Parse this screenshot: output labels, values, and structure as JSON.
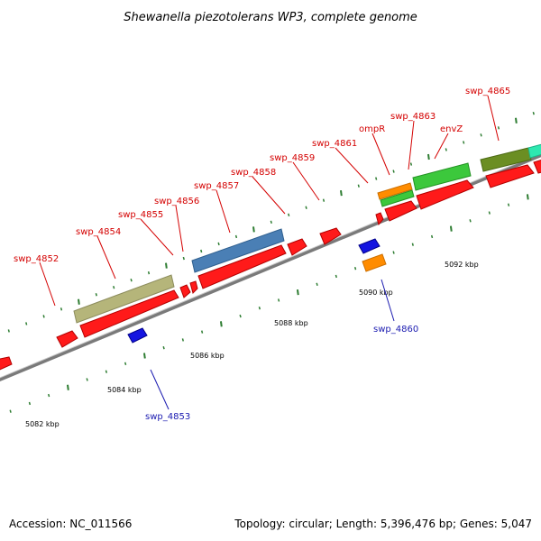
{
  "title": "Shewanella piezotolerans WP3, complete genome",
  "footer": {
    "accession": "Accession: NC_011566",
    "summary": "Topology: circular; Length: 5,396,476 bp; Genes: 5,047"
  },
  "colors": {
    "forward_label": "#d40000",
    "reverse_label": "#1a1ab0",
    "backbone": "#8a8a8a",
    "tick": "#2e7d32",
    "cds_forward": "#ff1a1a",
    "cds_reverse": "#1414e0"
  },
  "scale_labels": [
    "5082 kbp",
    "5084 kbp",
    "5086 kbp",
    "5088 kbp",
    "5090 kbp",
    "5092 kbp"
  ],
  "genes_forward": [
    {
      "id": "f-4852",
      "label": "swp_4852",
      "cog_color": "#ff1a1a"
    },
    {
      "id": "f-4854",
      "label": "swp_4854",
      "cog_color": "#b5b57a"
    },
    {
      "id": "f-4855",
      "label": "swp_4855",
      "cog_color": "#ff1a1a"
    },
    {
      "id": "f-4856",
      "label": "swp_4856",
      "cog_color": "#ff1a1a"
    },
    {
      "id": "f-4857",
      "label": "swp_4857",
      "cog_color": "#4a7fb5"
    },
    {
      "id": "f-4858",
      "label": "swp_4858",
      "cog_color": "#ff1a1a"
    },
    {
      "id": "f-4859",
      "label": "swp_4859",
      "cog_color": "#ff1a1a"
    },
    {
      "id": "f-4861",
      "label": "swp_4861",
      "cog_color": "#ff1a1a"
    },
    {
      "id": "f-ompR",
      "label": "ompR",
      "cog_color": "#ff8c00"
    },
    {
      "id": "f-4863",
      "label": "swp_4863",
      "cog_color": "#3cc83c"
    },
    {
      "id": "f-envZ",
      "label": "envZ",
      "cog_color": "#3cc83c"
    },
    {
      "id": "f-4865",
      "label": "swp_4865",
      "cog_color": "#6b8e23"
    }
  ],
  "genes_reverse": [
    {
      "id": "r-4853",
      "label": "swp_4853",
      "cog_color": "#1414e0"
    },
    {
      "id": "r-4860",
      "label": "swp_4860",
      "cog_color": "#1414e0"
    }
  ]
}
